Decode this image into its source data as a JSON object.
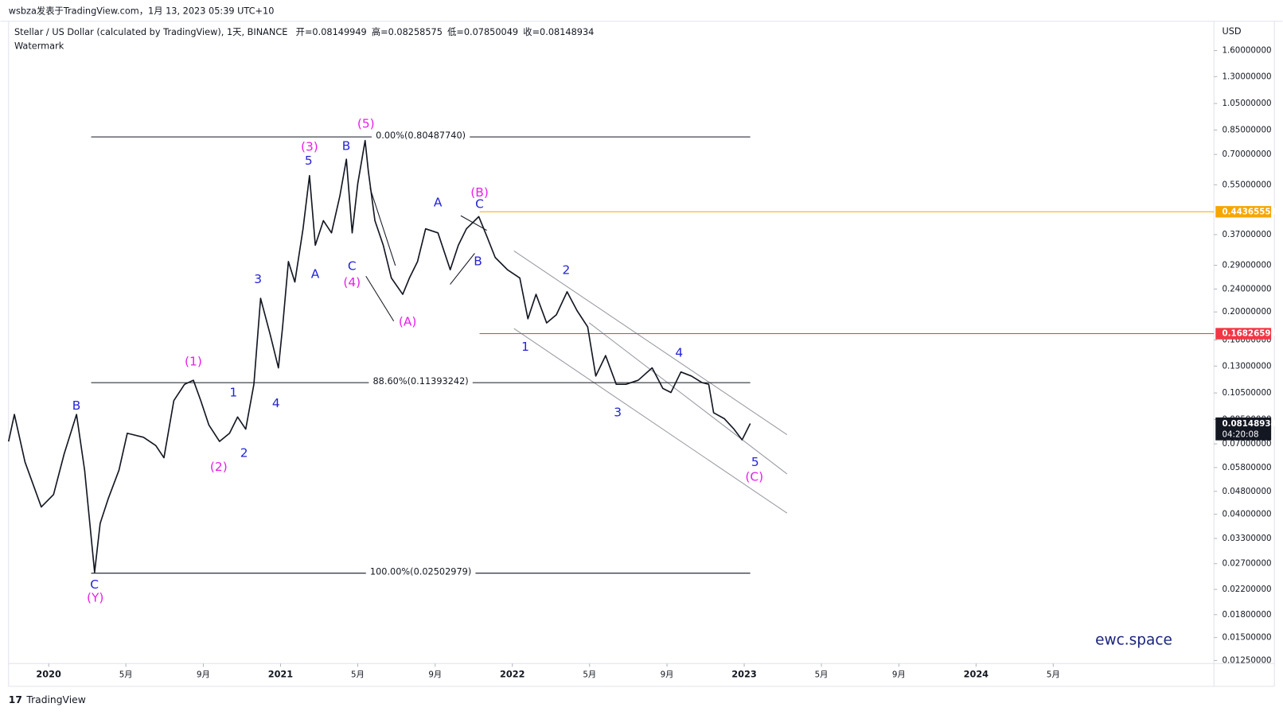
{
  "header": {
    "publisher": "wsbza发表于TradingView.com，1月 13, 2023 05:39 UTC+10",
    "footer": "TradingView",
    "watermark": "ewc.space"
  },
  "chart_data": {
    "type": "line",
    "title": "Stellar / US Dollar (calculated by TradingView), 1天, BINANCE",
    "subtitle": "Watermark",
    "ohlc": [
      {
        "label": "开=",
        "value": 0.08149949
      },
      {
        "label": "高=",
        "value": 0.08258575
      },
      {
        "label": "低=",
        "value": 0.07850049
      },
      {
        "label": "收=",
        "value": 0.08148934
      }
    ],
    "y_axis_label": "USD",
    "log_scale": true,
    "grid": false,
    "x": [
      2019.827,
      2019.852,
      2019.898,
      2019.968,
      2020.021,
      2020.067,
      2020.12,
      2020.155,
      2020.198,
      2020.222,
      2020.257,
      2020.303,
      2020.339,
      2020.409,
      2020.462,
      2020.497,
      2020.54,
      2020.586,
      2020.624,
      2020.656,
      2020.691,
      2020.737,
      2020.78,
      2020.815,
      2020.85,
      2020.885,
      2020.914,
      2020.956,
      2020.991,
      2021.009,
      2021.034,
      2021.062,
      2021.097,
      2021.125,
      2021.15,
      2021.185,
      2021.22,
      2021.256,
      2021.284,
      2021.309,
      2021.333,
      2021.365,
      2021.379,
      2021.407,
      2021.443,
      2021.478,
      2021.527,
      2021.556,
      2021.591,
      2021.626,
      2021.679,
      2021.732,
      2021.767,
      2021.802,
      2021.855,
      2021.891,
      2021.926,
      2021.979,
      2022.032,
      2022.067,
      2022.102,
      2022.148,
      2022.19,
      2022.236,
      2022.279,
      2022.325,
      2022.36,
      2022.402,
      2022.448,
      2022.49,
      2022.543,
      2022.603,
      2022.649,
      2022.684,
      2022.727,
      2022.772,
      2022.818,
      2022.847,
      2022.868,
      2022.914,
      2022.956,
      2022.991,
      2023.026
    ],
    "series": [
      {
        "name": "XLMUSD",
        "color": "#131722",
        "values": [
          0.0714,
          0.0885,
          0.0606,
          0.0424,
          0.0468,
          0.0647,
          0.0885,
          0.0568,
          0.0252,
          0.0372,
          0.0453,
          0.0568,
          0.0762,
          0.0738,
          0.0691,
          0.0627,
          0.0988,
          0.1125,
          0.1162,
          0.0988,
          0.0813,
          0.0714,
          0.0762,
          0.0867,
          0.0787,
          0.1125,
          0.2229,
          0.1663,
          0.1282,
          0.1775,
          0.2985,
          0.2538,
          0.3875,
          0.5916,
          0.34,
          0.4135,
          0.375,
          0.5027,
          0.6737,
          0.375,
          0.5543,
          0.782,
          0.611,
          0.4135,
          0.34,
          0.262,
          0.23,
          0.262,
          0.2985,
          0.3875,
          0.375,
          0.2797,
          0.34,
          0.3875,
          0.427,
          0.363,
          0.3085,
          0.2797,
          0.262,
          0.1894,
          0.23,
          0.1833,
          0.1955,
          0.2348,
          0.202,
          0.1775,
          0.1201,
          0.1413,
          0.1125,
          0.1125,
          0.1162,
          0.1282,
          0.1089,
          0.1054,
          0.1241,
          0.1201,
          0.114,
          0.1125,
          0.0897,
          0.0856,
          0.0787,
          0.0723,
          0.0823
        ]
      }
    ],
    "xlim": [
      2019.827,
      2025.026
    ],
    "xticks": [
      2020,
      {
        "value": 2020.333,
        "label": "5月"
      },
      {
        "value": 2020.667,
        "label": "9月"
      },
      2021,
      {
        "value": 2021.333,
        "label": "5月"
      },
      {
        "value": 2021.667,
        "label": "9月"
      },
      2022,
      {
        "value": 2022.333,
        "label": "5月"
      },
      {
        "value": 2022.667,
        "label": "9月"
      },
      2023,
      {
        "value": 2023.333,
        "label": "5月"
      },
      {
        "value": 2023.667,
        "label": "9月"
      },
      2024,
      {
        "value": 2024.333,
        "label": "5月"
      }
    ],
    "ylim": [
      0.0122,
      2.02
    ],
    "yticks": [
      {
        "value": 1.6,
        "label": "1.60000000"
      },
      {
        "value": 1.3,
        "label": "1.30000000"
      },
      {
        "value": 1.05,
        "label": "1.05000000"
      },
      {
        "value": 0.85,
        "label": "0.85000000"
      },
      {
        "value": 0.7,
        "label": "0.70000000"
      },
      {
        "value": 0.55,
        "label": "0.55000000"
      },
      {
        "value": 0.37,
        "label": "0.37000000"
      },
      {
        "value": 0.29,
        "label": "0.29000000"
      },
      {
        "value": 0.24,
        "label": "0.24000000"
      },
      {
        "value": 0.2,
        "label": "0.20000000"
      },
      {
        "value": 0.16,
        "label": "0.16000000"
      },
      {
        "value": 0.13,
        "label": "0.13000000"
      },
      {
        "value": 0.105,
        "label": "0.10500000"
      },
      {
        "value": 0.085,
        "label": "0.08500000"
      },
      {
        "value": 0.07,
        "label": "0.07000000"
      },
      {
        "value": 0.058,
        "label": "0.05800000"
      },
      {
        "value": 0.048,
        "label": "0.04800000"
      },
      {
        "value": 0.04,
        "label": "0.04000000"
      },
      {
        "value": 0.033,
        "label": "0.03300000"
      },
      {
        "value": 0.027,
        "label": "0.02700000"
      },
      {
        "value": 0.022,
        "label": "0.02200000"
      },
      {
        "value": 0.018,
        "label": "0.01800000"
      },
      {
        "value": 0.015,
        "label": "0.01500000"
      },
      {
        "value": 0.0125,
        "label": "0.01250000"
      }
    ],
    "fib_levels": [
      {
        "value": 0.8048774,
        "label": "0.00%(0.80487740)"
      },
      {
        "value": 0.11393242,
        "label": "88.60%(0.11393242)"
      },
      {
        "value": 0.02502979,
        "label": "100.00%(0.02502979)"
      }
    ],
    "price_lines": [
      {
        "value": 0.44365553,
        "color": "#f7a600"
      },
      {
        "value": 0.16826595,
        "color": "#f23645"
      }
    ],
    "last_price": {
      "value": 0.08148934,
      "countdown": "04:20:08",
      "color": "#131722"
    },
    "wave_labels": [
      {
        "text": "B",
        "color": "#2424d6"
      },
      {
        "text": "C",
        "color": "#2424d6"
      },
      {
        "text": "1",
        "color": "#2424d6"
      },
      {
        "text": "2",
        "color": "#2424d6"
      },
      {
        "text": "3",
        "color": "#2424d6"
      },
      {
        "text": "4",
        "color": "#2424d6"
      },
      {
        "text": "5",
        "color": "#2424d6"
      },
      {
        "text": "A",
        "color": "#2424d6"
      },
      {
        "text": "B",
        "color": "#2424d6"
      },
      {
        "text": "C",
        "color": "#2424d6"
      },
      {
        "text": "A",
        "color": "#2424d6"
      },
      {
        "text": "C",
        "color": "#2424d6"
      },
      {
        "text": "B",
        "color": "#2424d6"
      },
      {
        "text": "1",
        "color": "#2424d6"
      },
      {
        "text": "2",
        "color": "#2424d6"
      },
      {
        "text": "3",
        "color": "#2424d6"
      },
      {
        "text": "4",
        "color": "#2424d6"
      },
      {
        "text": "5",
        "color": "#2424d6"
      },
      {
        "text": "(Y)",
        "color": "#e81ee8"
      },
      {
        "text": "(1)",
        "color": "#e81ee8"
      },
      {
        "text": "(2)",
        "color": "#e81ee8"
      },
      {
        "text": "(3)",
        "color": "#e81ee8"
      },
      {
        "text": "(4)",
        "color": "#e81ee8"
      },
      {
        "text": "(5)",
        "color": "#e81ee8"
      },
      {
        "text": "(A)",
        "color": "#e81ee8"
      },
      {
        "text": "(B)",
        "color": "#e81ee8"
      },
      {
        "text": "(C)",
        "color": "#e81ee8"
      }
    ]
  }
}
